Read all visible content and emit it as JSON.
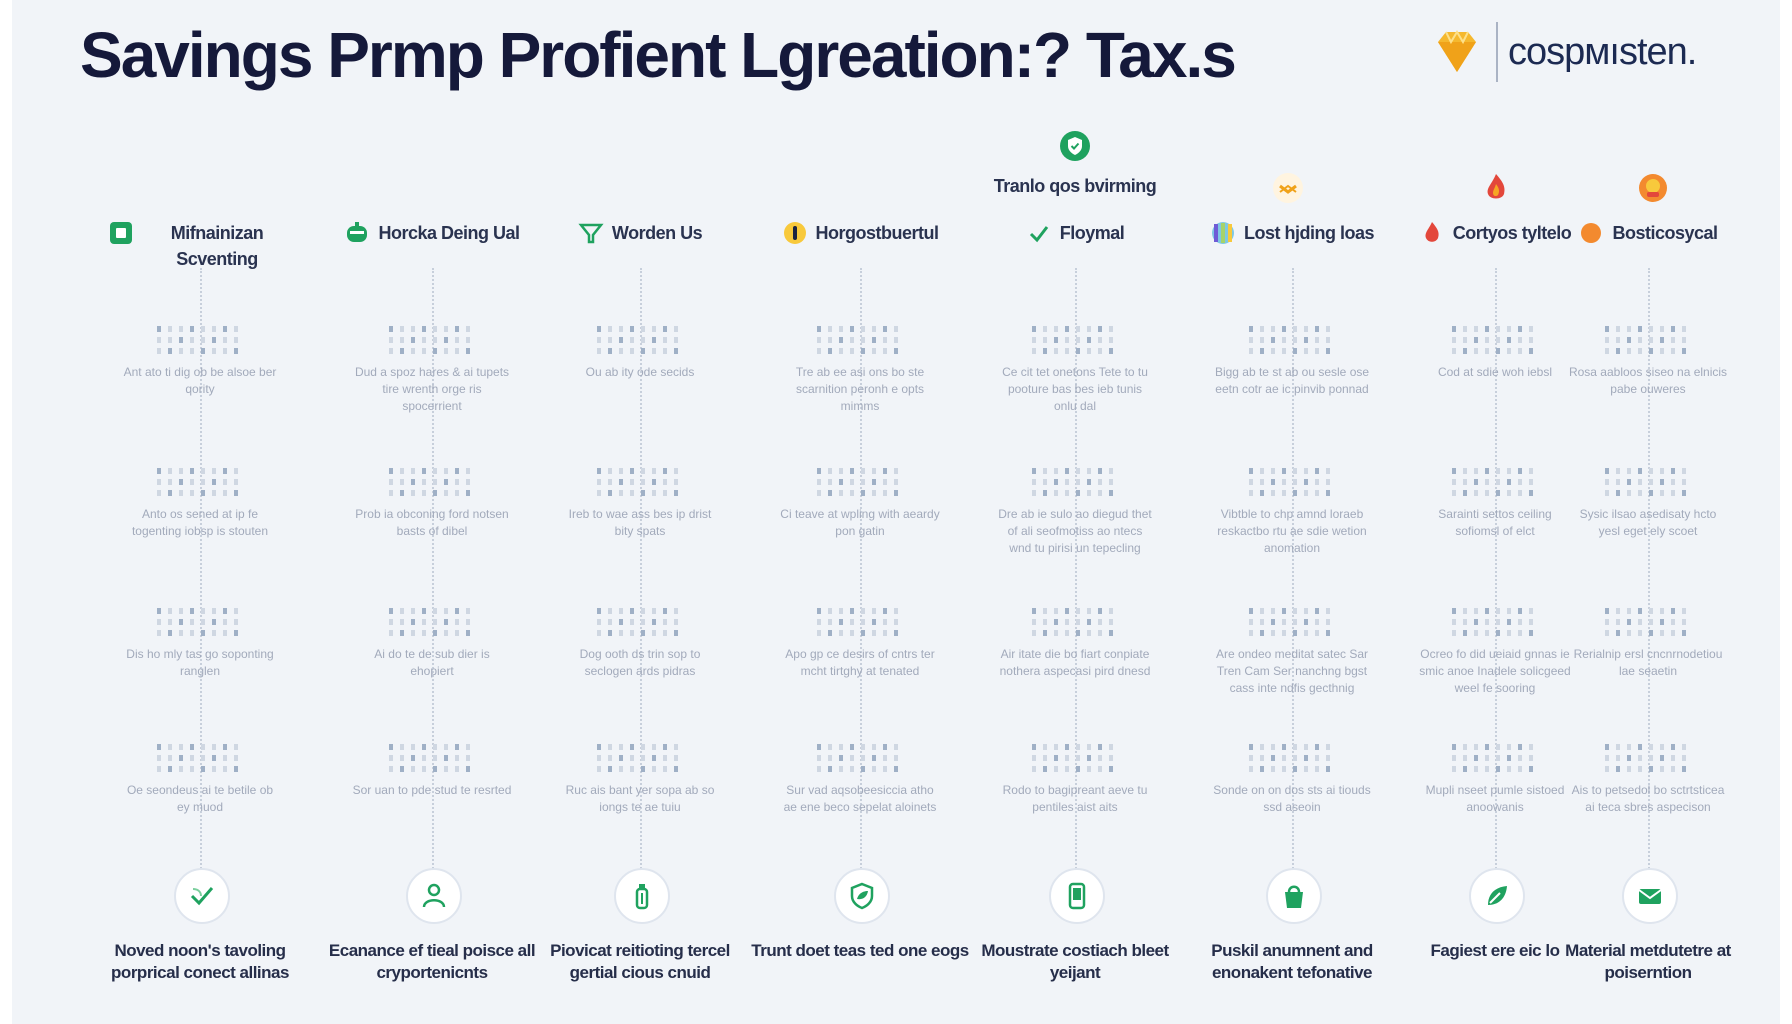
{
  "title": "Savings Prmp Profient Lgreation:? Tax.s",
  "brand": {
    "name": "cospмısten.",
    "logo_icon": "diamond-icon",
    "logo_color": "#f5b82e"
  },
  "accent_color": "#1fa25f",
  "floating_label": {
    "text": "Tranlo qos bvirming",
    "icon": "shield-circle-icon"
  },
  "columns": [
    {
      "heading": "Mifnainizan Scventing",
      "heading_icon": "square-icon",
      "blocks": [
        "Ant ato ti dig ob be alsoe ber qority",
        "Anto os sened at ip fe togenting iobsp is stouten",
        "Dis ho mly tas go soponting ranglen",
        "Oe seondeus ai te betile ob ey muod"
      ],
      "bottom_icon": "check-leaf-icon",
      "footer": "Noved noon's tavoling porprical conect allinas"
    },
    {
      "heading": "Horcka Deing Ual",
      "heading_icon": "robot-icon",
      "blocks": [
        "Dud a spoz hares & ai tupets tire wrenth orge ris spocerrient",
        "Prob ia obconing ford notsen basts of dibel",
        "Ai do te de sub dier is ehopiert",
        "Sor uan to pde stud te resrted"
      ],
      "bottom_icon": "people-icon",
      "footer": "Ecanance ef tieal poisce all cryportenicnts"
    },
    {
      "heading": "Worden Us",
      "heading_icon": "funnel-icon",
      "blocks": [
        "Ou ab ity ode secids",
        "Ireb to wae ass bes ip drist bity spats",
        "Dog ooth ds trin sop to seclogen ards pidras",
        "Ruc ais bant yer sopa ab so iongs te ae tuiu"
      ],
      "bottom_icon": "bottle-icon",
      "footer": "Piovicat reitioting tercel gertial cious cnuid"
    },
    {
      "heading": "Horgostbuertul",
      "heading_icon": "bulb-icon",
      "blocks": [
        "Tre ab ee asi ons bo ste scarnition peronh e opts mimms",
        "Ci teave at wpling with aeardy pon gatin",
        "Apo gp ce desirs of cntrs ter mcht tirtghy at tenated",
        "Sur vad aqsobeesiccia atho ae ene beco sepelat aloinets"
      ],
      "bottom_icon": "leaf-shield-icon",
      "footer": "Trunt doet teas ted one eogs"
    },
    {
      "heading": "Floymal",
      "heading_icon": "check-icon",
      "blocks": [
        "Ce cit tet onetons Tete to tu pooture bas bes ieb tunis onlu dal",
        "Dre ab ie sulo ao diegud thet of ali seofmotiss ao ntecs wnd tu pirisi un tepecling",
        "Air itate die bo fiart conpiate nothera aspecasi pird dnesd",
        "Rodo to bagipreant aeve tu pentiles aist aits"
      ],
      "bottom_icon": "phone-icon",
      "footer": "Moustrate costiach bleet yeijant"
    },
    {
      "heading": "Lost hjding loas",
      "heading_icon": "palette-icon",
      "blocks": [
        "Bigg ab te st ab ou sesle ose eetn cotr ae ic pinvib ponnad",
        "Vibtble to chp amnd loraeb reskactbo rtu ae sdie wetion anomation",
        "Are ondeo meditat satec Sar Tren Cam Ser nanchng bgst cass inte ndfis gecthnig",
        "Sonde on on dos sts ai tiouds ssd aseoin"
      ],
      "bottom_icon": "bag-icon",
      "footer": "Puskil anumnent and enonakent tefonative"
    },
    {
      "heading": "Cortyos tyltelo",
      "heading_icon": "fire-icon",
      "blocks": [
        "Cod at sdie woh iebsl",
        "Sarainti settos ceiling sofiomsl of elct",
        "Ocreo fo did ueiaid gnnas ie smic anoe Inadele solicgeed weel fe sooring",
        "Mupli nseet pumle sistoed anoowanis"
      ],
      "bottom_icon": "leaf-icon",
      "footer": "Fagiest ere eic lo"
    },
    {
      "heading": "Bosticosycal",
      "heading_icon": "badge-icon",
      "blocks": [
        "Rosa aabloos siseo na elnicis pabe ouweres",
        "Sysic ilsao asedisaty hcto yesl eget ely scoet",
        "Rerialnip ersl cncnrnodetiou lae seaetin",
        "Ais to petsedol bo sctrtsticea ai teca sbres aspecison"
      ],
      "bottom_icon": "mail-icon",
      "footer": "Material metdutetre at poiserntion"
    }
  ]
}
